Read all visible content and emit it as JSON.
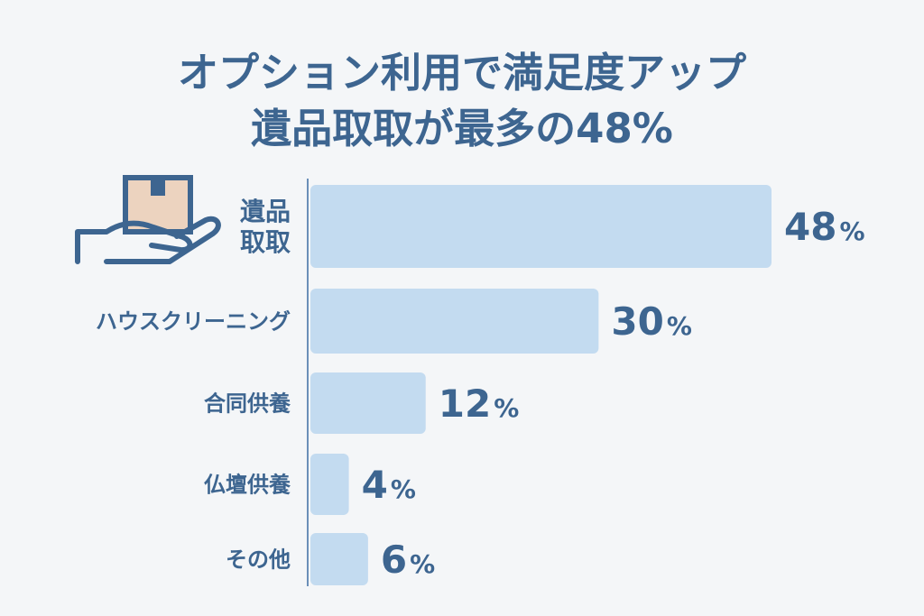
{
  "title": {
    "line1": "オプション利用で満足度アップ",
    "line2": "遺品取取が最多の48%"
  },
  "colors": {
    "bar": "#c3dbf0",
    "text": "#3d6590",
    "axis": "#6b8fb8",
    "background": "#f4f6f8",
    "box": "#ecd3bf"
  },
  "icons": [
    "hand-holding-box-icon"
  ],
  "chart_data": {
    "type": "bar",
    "orientation": "horizontal",
    "title": "オプション利用で満足度アップ 遺品取取が最多の48%",
    "categories": [
      "遺品取取",
      "ハウスクリーニング",
      "合同供養",
      "仏壇供養",
      "その他"
    ],
    "category_label_lines": [
      [
        "遺品",
        "取取"
      ],
      [
        "ハウスクリーニング"
      ],
      [
        "合同供養"
      ],
      [
        "仏壇供養"
      ],
      [
        "その他"
      ]
    ],
    "values": [
      48,
      30,
      12,
      4,
      6
    ],
    "value_labels": [
      "48",
      "30",
      "12",
      "4",
      "6"
    ],
    "unit": "%",
    "xlim": [
      0,
      48
    ],
    "grid": false,
    "legend": "none"
  }
}
